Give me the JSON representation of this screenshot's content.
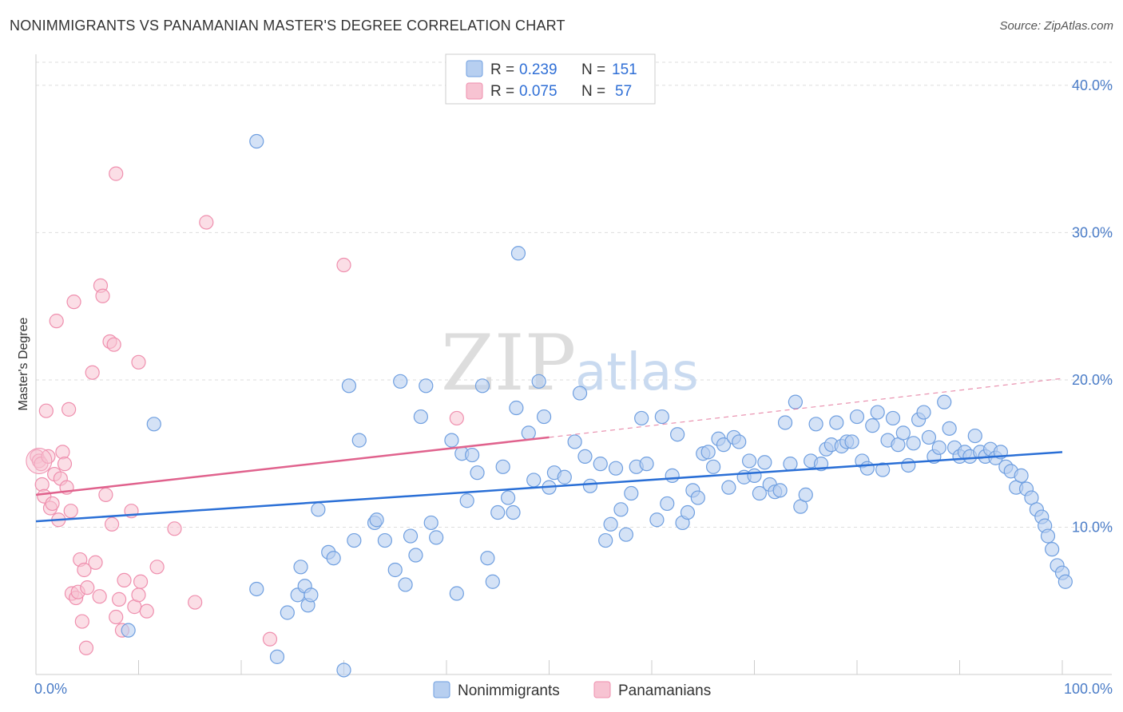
{
  "title": "NONIMMIGRANTS VS PANAMANIAN MASTER'S DEGREE CORRELATION CHART",
  "source": "Source: ZipAtlas.com",
  "watermark": {
    "zip": "ZIP",
    "atlas": "atlas"
  },
  "colors": {
    "blue": "#6f9fe0",
    "blue_fill": "#b7cff0",
    "blue_line": "#2a6fd6",
    "pink": "#ef8fae",
    "pink_fill": "#f7c3d2",
    "pink_line": "#e0628d"
  },
  "legend": {
    "rows": [
      {
        "r_label": "R =",
        "r_value": "0.239",
        "n_label": "N =",
        "n_value": "151"
      },
      {
        "r_label": "R =",
        "r_value": "0.075",
        "n_label": "N =",
        "n_value": "57"
      }
    ]
  },
  "bottom_legend": [
    "Nonimmigrants",
    "Panamanians"
  ],
  "chart_data": {
    "type": "scatter",
    "title": "NONIMMIGRANTS VS PANAMANIAN MASTER'S DEGREE CORRELATION CHART",
    "xlabel": "",
    "ylabel": "Master's Degree",
    "xlim": [
      0,
      100
    ],
    "ylim": [
      0,
      42
    ],
    "x_tick_labels": [
      "0.0%",
      "100.0%"
    ],
    "y_ticks": [
      10,
      20,
      30,
      40
    ],
    "y_tick_labels": [
      "10.0%",
      "20.0%",
      "30.0%",
      "40.0%"
    ],
    "series": [
      {
        "name": "Nonimmigrants",
        "trend": {
          "x": [
            0,
            100
          ],
          "y": [
            10.4,
            15.1
          ]
        },
        "points": [
          [
            9,
            3
          ],
          [
            11.5,
            17
          ],
          [
            21.5,
            36.2
          ],
          [
            21.5,
            5.8
          ],
          [
            23.5,
            1.2
          ],
          [
            24.5,
            4.2
          ],
          [
            25.5,
            5.4
          ],
          [
            25.8,
            7.3
          ],
          [
            26.2,
            6
          ],
          [
            26.5,
            4.7
          ],
          [
            26.8,
            5.4
          ],
          [
            27.5,
            11.2
          ],
          [
            28.5,
            8.3
          ],
          [
            29,
            7.9
          ],
          [
            30.5,
            19.6
          ],
          [
            30,
            0.3
          ],
          [
            31,
            9.1
          ],
          [
            31.5,
            15.9
          ],
          [
            33,
            10.3
          ],
          [
            33.2,
            10.5
          ],
          [
            34,
            9.1
          ],
          [
            35,
            7.1
          ],
          [
            35.5,
            19.9
          ],
          [
            36,
            6.1
          ],
          [
            36.5,
            9.4
          ],
          [
            37,
            8.1
          ],
          [
            37.5,
            17.5
          ],
          [
            38,
            19.6
          ],
          [
            38.5,
            10.3
          ],
          [
            39,
            9.3
          ],
          [
            40.5,
            15.9
          ],
          [
            41,
            5.5
          ],
          [
            41.5,
            15
          ],
          [
            42,
            11.8
          ],
          [
            42.5,
            14.9
          ],
          [
            43,
            13.7
          ],
          [
            43.5,
            19.6
          ],
          [
            44,
            7.9
          ],
          [
            44.5,
            6.3
          ],
          [
            45,
            11
          ],
          [
            45.5,
            14.1
          ],
          [
            46,
            12
          ],
          [
            46.5,
            11
          ],
          [
            46.8,
            18.1
          ],
          [
            47,
            28.6
          ],
          [
            48,
            16.4
          ],
          [
            48.5,
            13.2
          ],
          [
            49,
            19.9
          ],
          [
            49.5,
            17.5
          ],
          [
            50,
            12.7
          ],
          [
            50.5,
            13.7
          ],
          [
            51.5,
            13.4
          ],
          [
            52.5,
            15.8
          ],
          [
            53,
            19.1
          ],
          [
            53.5,
            14.8
          ],
          [
            54,
            12.8
          ],
          [
            55,
            14.3
          ],
          [
            55.5,
            9.1
          ],
          [
            56,
            10.2
          ],
          [
            56.5,
            14
          ],
          [
            57,
            11.2
          ],
          [
            57.5,
            9.5
          ],
          [
            58,
            12.3
          ],
          [
            58.5,
            14.1
          ],
          [
            59,
            17.4
          ],
          [
            59.5,
            14.3
          ],
          [
            60.5,
            10.5
          ],
          [
            61,
            17.5
          ],
          [
            61.5,
            11.6
          ],
          [
            62,
            13.5
          ],
          [
            62.5,
            16.3
          ],
          [
            63,
            10.3
          ],
          [
            63.5,
            11
          ],
          [
            64,
            12.5
          ],
          [
            64.5,
            12
          ],
          [
            65,
            15
          ],
          [
            65.5,
            15.1
          ],
          [
            66,
            14.1
          ],
          [
            66.5,
            16
          ],
          [
            67,
            15.6
          ],
          [
            67.5,
            12.7
          ],
          [
            68,
            16.1
          ],
          [
            68.5,
            15.8
          ],
          [
            69,
            13.4
          ],
          [
            69.5,
            14.5
          ],
          [
            70,
            13.5
          ],
          [
            70.5,
            12.3
          ],
          [
            71,
            14.4
          ],
          [
            71.5,
            12.9
          ],
          [
            72,
            12.4
          ],
          [
            72.5,
            12.5
          ],
          [
            73,
            17.1
          ],
          [
            73.5,
            14.3
          ],
          [
            74,
            18.5
          ],
          [
            74.5,
            11.4
          ],
          [
            75,
            12.2
          ],
          [
            75.5,
            14.5
          ],
          [
            76,
            17
          ],
          [
            76.5,
            14.3
          ],
          [
            77,
            15.3
          ],
          [
            77.5,
            15.6
          ],
          [
            78,
            17.1
          ],
          [
            78.5,
            15.5
          ],
          [
            79,
            15.8
          ],
          [
            79.5,
            15.8
          ],
          [
            80,
            17.5
          ],
          [
            80.5,
            14.5
          ],
          [
            81,
            14
          ],
          [
            81.5,
            16.9
          ],
          [
            82,
            17.8
          ],
          [
            82.5,
            13.9
          ],
          [
            83,
            15.9
          ],
          [
            83.5,
            17.4
          ],
          [
            84,
            15.6
          ],
          [
            84.5,
            16.4
          ],
          [
            85,
            14.2
          ],
          [
            85.5,
            15.7
          ],
          [
            86,
            17.3
          ],
          [
            86.5,
            17.8
          ],
          [
            87,
            16.1
          ],
          [
            87.5,
            14.8
          ],
          [
            88,
            15.4
          ],
          [
            88.5,
            18.5
          ],
          [
            89,
            16.7
          ],
          [
            89.5,
            15.4
          ],
          [
            90,
            14.8
          ],
          [
            90.5,
            15.1
          ],
          [
            91,
            14.8
          ],
          [
            91.5,
            16.2
          ],
          [
            92,
            15.1
          ],
          [
            92.5,
            14.8
          ],
          [
            93,
            15.3
          ],
          [
            93.5,
            14.7
          ],
          [
            94,
            15.1
          ],
          [
            94.5,
            14.1
          ],
          [
            95,
            13.8
          ],
          [
            95.5,
            12.7
          ],
          [
            96,
            13.5
          ],
          [
            96.5,
            12.6
          ],
          [
            97,
            12
          ],
          [
            97.5,
            11.2
          ],
          [
            98,
            10.7
          ],
          [
            98.3,
            10.1
          ],
          [
            98.6,
            9.4
          ],
          [
            99,
            8.5
          ],
          [
            99.5,
            7.4
          ],
          [
            100,
            6.9
          ],
          [
            100.3,
            6.3
          ]
        ]
      },
      {
        "name": "Panamanians",
        "trend": {
          "x": [
            0,
            50
          ],
          "y": [
            12.2,
            16.1
          ]
        },
        "trend_extension": {
          "x": [
            50,
            100
          ],
          "y": [
            16.1,
            20.1
          ]
        },
        "points": [
          [
            0.1,
            14.8
          ],
          [
            0.3,
            14.5
          ],
          [
            0.5,
            14.3
          ],
          [
            0.6,
            12.9
          ],
          [
            0.8,
            12.1
          ],
          [
            1,
            17.9
          ],
          [
            1.2,
            14.8
          ],
          [
            1.4,
            11.3
          ],
          [
            1.6,
            11.6
          ],
          [
            1.8,
            13.6
          ],
          [
            2,
            24
          ],
          [
            2.2,
            10.5
          ],
          [
            2.4,
            13.3
          ],
          [
            2.6,
            15.1
          ],
          [
            2.8,
            14.3
          ],
          [
            3,
            12.7
          ],
          [
            3.2,
            18
          ],
          [
            3.4,
            11.1
          ],
          [
            3.5,
            5.5
          ],
          [
            3.7,
            25.3
          ],
          [
            3.9,
            5.2
          ],
          [
            4.1,
            5.6
          ],
          [
            4.3,
            7.8
          ],
          [
            4.5,
            3.6
          ],
          [
            4.7,
            7.1
          ],
          [
            4.9,
            1.8
          ],
          [
            5,
            5.9
          ],
          [
            5.5,
            20.5
          ],
          [
            5.8,
            7.6
          ],
          [
            6.2,
            5.3
          ],
          [
            6.3,
            26.4
          ],
          [
            6.5,
            25.7
          ],
          [
            6.8,
            12.2
          ],
          [
            7.2,
            22.6
          ],
          [
            7.4,
            10.2
          ],
          [
            7.6,
            22.4
          ],
          [
            7.8,
            3.9
          ],
          [
            7.8,
            34
          ],
          [
            8.1,
            5.1
          ],
          [
            8.4,
            3
          ],
          [
            8.6,
            6.4
          ],
          [
            9.3,
            11.1
          ],
          [
            9.6,
            4.6
          ],
          [
            10,
            21.2
          ],
          [
            10,
            5.4
          ],
          [
            10.2,
            6.3
          ],
          [
            10.8,
            4.3
          ],
          [
            11.8,
            7.3
          ],
          [
            13.5,
            9.9
          ],
          [
            15.5,
            4.9
          ],
          [
            16.6,
            30.7
          ],
          [
            22.8,
            2.4
          ],
          [
            30,
            27.8
          ],
          [
            41,
            17.4
          ]
        ]
      }
    ]
  }
}
